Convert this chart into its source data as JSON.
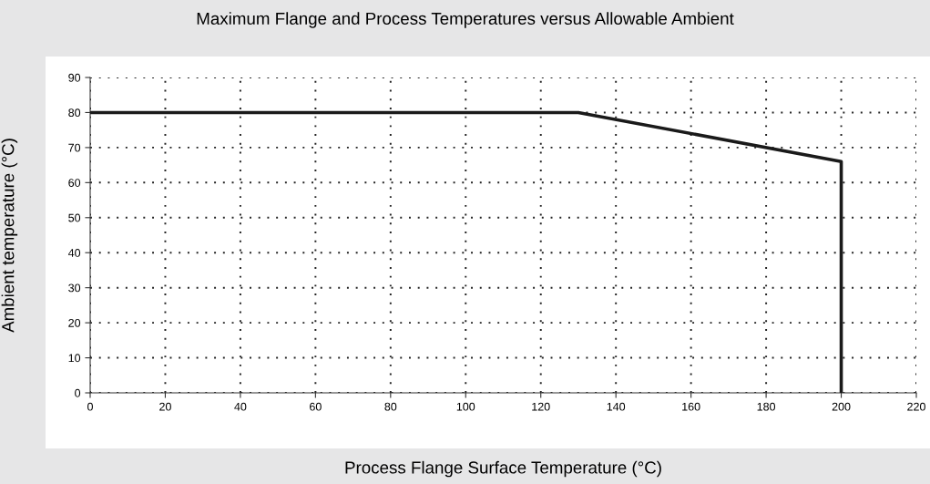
{
  "chart_data": {
    "type": "line",
    "title": "Maximum Flange and Process Temperatures versus Allowable Ambient",
    "xlabel": "Process Flange Surface Temperature (°C)",
    "ylabel": "Ambient temperature (°C)",
    "series": [
      {
        "color": "#1a1a1a",
        "x": [
          0,
          130,
          200,
          200
        ],
        "values": [
          80,
          80,
          66,
          0
        ]
      }
    ],
    "xlim": [
      0,
      220
    ],
    "xticks": [
      0,
      20,
      40,
      60,
      80,
      100,
      120,
      140,
      160,
      180,
      200,
      220
    ],
    "ylim": [
      0,
      90
    ],
    "yticks": [
      0,
      10,
      20,
      30,
      40,
      50,
      60,
      70,
      80,
      90
    ],
    "grid": true,
    "line_style": "solid",
    "marker": "none"
  }
}
